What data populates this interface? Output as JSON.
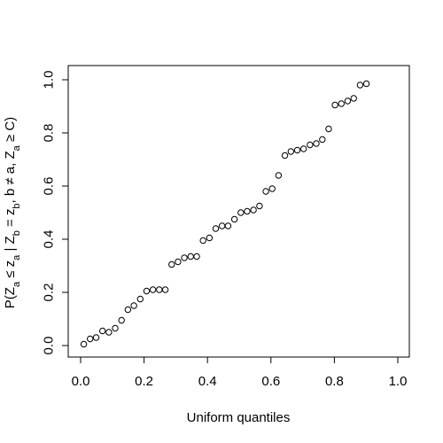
{
  "chart_data": {
    "type": "scatter",
    "title": "",
    "xlabel": "Uniform quantiles",
    "ylabel": "P(Z_a ≤ z_a | Z_b = z_b, b ≠ a, Z_a ≥ C)",
    "ylabel_parts": {
      "p1": "P(Z",
      "s1": "a",
      "p2": " ≤ z",
      "s2": "a",
      "p3": " | Z",
      "s3": "b",
      "p4": " = z",
      "s4": "b",
      "p5": ", b ≠ a, Z",
      "s5": "a",
      "p6": " ≥ C)"
    },
    "xlim": [
      0.0,
      1.0
    ],
    "ylim": [
      0.0,
      1.0
    ],
    "xticks": [
      0.0,
      0.2,
      0.4,
      0.6,
      0.8,
      1.0
    ],
    "yticks": [
      0.0,
      0.2,
      0.4,
      0.6,
      0.8,
      1.0
    ],
    "xtick_labels": [
      "0.0",
      "0.2",
      "0.4",
      "0.6",
      "0.8",
      "1.0"
    ],
    "ytick_labels": [
      "0.0",
      "0.2",
      "0.4",
      "0.6",
      "0.8",
      "1.0"
    ],
    "grid": false,
    "marker": "open-circle",
    "marker_color": "#000000",
    "points": [
      [
        0.01,
        0.005
      ],
      [
        0.03,
        0.025
      ],
      [
        0.049,
        0.03
      ],
      [
        0.069,
        0.055
      ],
      [
        0.089,
        0.05
      ],
      [
        0.109,
        0.065
      ],
      [
        0.129,
        0.095
      ],
      [
        0.149,
        0.135
      ],
      [
        0.168,
        0.15
      ],
      [
        0.188,
        0.175
      ],
      [
        0.208,
        0.205
      ],
      [
        0.228,
        0.21
      ],
      [
        0.248,
        0.21
      ],
      [
        0.267,
        0.21
      ],
      [
        0.287,
        0.305
      ],
      [
        0.307,
        0.315
      ],
      [
        0.327,
        0.33
      ],
      [
        0.347,
        0.335
      ],
      [
        0.366,
        0.335
      ],
      [
        0.386,
        0.395
      ],
      [
        0.406,
        0.405
      ],
      [
        0.426,
        0.44
      ],
      [
        0.446,
        0.45
      ],
      [
        0.465,
        0.45
      ],
      [
        0.485,
        0.475
      ],
      [
        0.505,
        0.5
      ],
      [
        0.525,
        0.505
      ],
      [
        0.545,
        0.51
      ],
      [
        0.564,
        0.525
      ],
      [
        0.584,
        0.58
      ],
      [
        0.604,
        0.59
      ],
      [
        0.624,
        0.64
      ],
      [
        0.644,
        0.715
      ],
      [
        0.663,
        0.73
      ],
      [
        0.683,
        0.735
      ],
      [
        0.703,
        0.74
      ],
      [
        0.723,
        0.755
      ],
      [
        0.743,
        0.76
      ],
      [
        0.762,
        0.775
      ],
      [
        0.782,
        0.815
      ],
      [
        0.802,
        0.905
      ],
      [
        0.822,
        0.91
      ],
      [
        0.842,
        0.92
      ],
      [
        0.861,
        0.93
      ],
      [
        0.881,
        0.98
      ],
      [
        0.901,
        0.985
      ]
    ]
  }
}
